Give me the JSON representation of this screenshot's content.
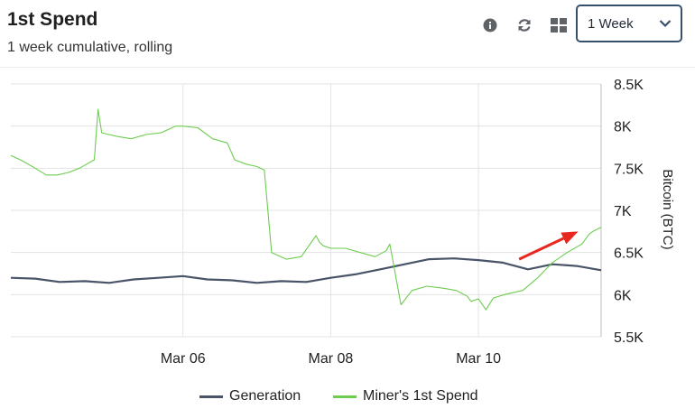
{
  "header": {
    "title": "1st Spend",
    "subtitle": "1 week cumulative, rolling"
  },
  "toolbar": {
    "icons": [
      "info-icon",
      "refresh-icon",
      "grid-icon"
    ],
    "range_select": {
      "selected": "1 Week"
    }
  },
  "colors": {
    "generation": "#4a5468",
    "miners_1st_spend": "#6ccd4f",
    "annotation_arrow": "#e8281e",
    "grid": "#e3e3e3"
  },
  "chart_data": {
    "type": "line",
    "x_tick_labels": [
      "Mar 06",
      "Mar 08",
      "Mar 10"
    ],
    "x_ticks": [
      1.0,
      3.0,
      5.0
    ],
    "xlim": [
      -1.33,
      6.66
    ],
    "ylabel": "Bitcoin (BTC)",
    "ylim": [
      5.5,
      8.5
    ],
    "y_ticks": [
      5.5,
      6.0,
      6.5,
      7.0,
      7.5,
      8.0,
      8.5
    ],
    "y_tick_labels": [
      "5.5K",
      "6K",
      "6.5K",
      "7K",
      "7.5K",
      "8K",
      "8.5K"
    ],
    "grid": true,
    "legend_position": "bottom",
    "series": [
      {
        "name": "Generation",
        "color": "#4a5468",
        "x": [
          -1.33,
          -1.0,
          -0.67,
          -0.33,
          0.0,
          0.33,
          0.67,
          1.0,
          1.33,
          1.67,
          2.0,
          2.33,
          2.67,
          3.0,
          3.33,
          3.67,
          4.0,
          4.33,
          4.67,
          5.0,
          5.33,
          5.67,
          6.0,
          6.33,
          6.66
        ],
        "y": [
          6.2,
          6.19,
          6.15,
          6.16,
          6.14,
          6.18,
          6.2,
          6.22,
          6.18,
          6.17,
          6.14,
          6.16,
          6.15,
          6.2,
          6.24,
          6.3,
          6.36,
          6.42,
          6.43,
          6.41,
          6.38,
          6.3,
          6.36,
          6.34,
          6.29
        ]
      },
      {
        "name": "Miner's 1st Spend",
        "color": "#6ccd4f",
        "x": [
          -1.33,
          -1.2,
          -1.0,
          -0.85,
          -0.7,
          -0.55,
          -0.4,
          -0.2,
          -0.15,
          -0.1,
          0.1,
          0.3,
          0.5,
          0.7,
          0.9,
          1.0,
          1.2,
          1.4,
          1.6,
          1.7,
          1.85,
          2.0,
          2.1,
          2.2,
          2.4,
          2.6,
          2.8,
          2.85,
          2.9,
          3.0,
          3.2,
          3.4,
          3.6,
          3.75,
          3.8,
          3.9,
          3.95,
          4.1,
          4.3,
          4.5,
          4.7,
          4.85,
          4.9,
          5.0,
          5.1,
          5.2,
          5.35,
          5.6,
          5.8,
          6.0,
          6.2,
          6.4,
          6.5,
          6.55,
          6.66
        ],
        "y": [
          7.65,
          7.6,
          7.5,
          7.42,
          7.42,
          7.45,
          7.5,
          7.6,
          8.2,
          7.92,
          7.88,
          7.85,
          7.9,
          7.92,
          8.0,
          8.0,
          7.98,
          7.85,
          7.8,
          7.6,
          7.55,
          7.52,
          7.48,
          6.5,
          6.42,
          6.45,
          6.7,
          6.62,
          6.58,
          6.55,
          6.55,
          6.5,
          6.45,
          6.52,
          6.6,
          6.12,
          5.88,
          6.05,
          6.1,
          6.08,
          6.05,
          5.98,
          5.92,
          5.95,
          5.82,
          5.96,
          6.0,
          6.05,
          6.2,
          6.38,
          6.5,
          6.6,
          6.72,
          6.75,
          6.8
        ]
      }
    ],
    "annotations": [
      {
        "type": "arrow",
        "color": "#e8281e",
        "from": {
          "x": 5.55,
          "y": 6.42
        },
        "to": {
          "x": 6.35,
          "y": 6.75
        }
      }
    ]
  },
  "legend": {
    "items": [
      {
        "label": "Generation",
        "color": "#4a5468"
      },
      {
        "label": "Miner's 1st Spend",
        "color": "#6ccd4f"
      }
    ]
  }
}
